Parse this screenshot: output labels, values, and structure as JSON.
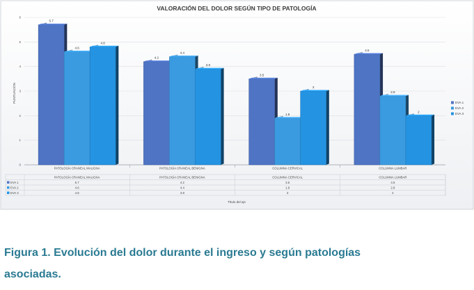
{
  "caption": "Figura 1. Evolución del dolor durante el ingreso y según patologías asociadas.",
  "chart_data": {
    "type": "bar",
    "title": "VALORACIÓN DEL DOLOR SEGÚN TIPO DE PATOLOGÍA",
    "xlabel": "Título del eje",
    "ylabel": "PUNTUACIÓN",
    "ylim": [
      0,
      6
    ],
    "yticks": [
      "0",
      "1",
      "2",
      "3",
      "4",
      "5",
      "6"
    ],
    "grid": true,
    "legend_position": "right",
    "categories": [
      "PATOLOGÍA CRANEAL MALIGNA",
      "PATOLOGÍA CRANEAL BENIGNA",
      "COLUMNA CERVICAL",
      "COLUMNA LUMBAR"
    ],
    "series": [
      {
        "name": "EVA 1",
        "values": [
          5.7,
          4.2,
          3.5,
          4.5
        ],
        "labels": [
          "5.7",
          "4.2",
          "3.5",
          "4.5"
        ],
        "color": "#4f74c4"
      },
      {
        "name": "EVA 2",
        "values": [
          4.6,
          4.4,
          1.9,
          2.8
        ],
        "labels": [
          "4.6",
          "4.4",
          "1.9",
          "2.8"
        ],
        "color": "#3b9be0"
      },
      {
        "name": "EVA 3",
        "values": [
          4.8,
          3.9,
          3.0,
          2.0
        ],
        "labels": [
          "4.8",
          "3.9",
          "3",
          "2"
        ],
        "color": "#2493e2"
      }
    ]
  }
}
